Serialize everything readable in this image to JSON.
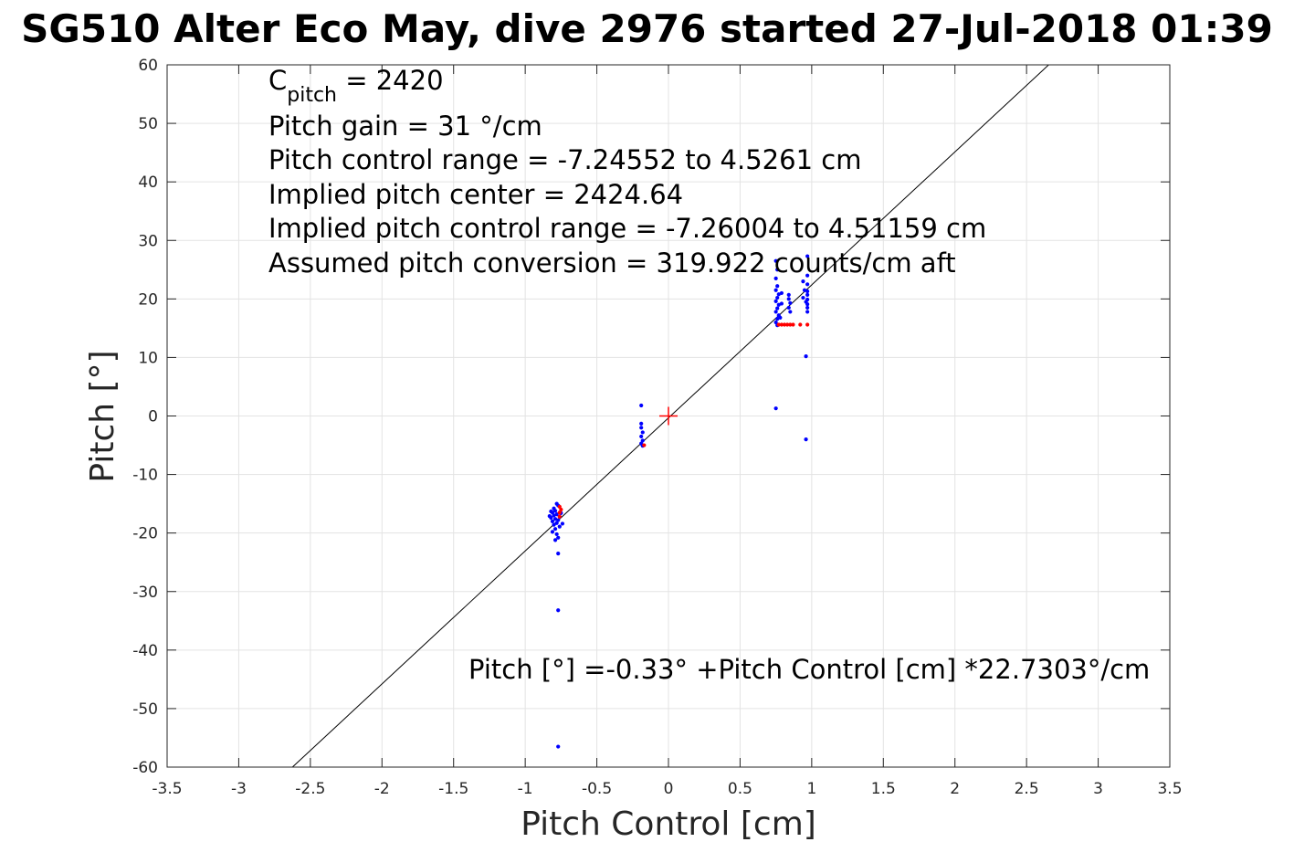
{
  "chart_data": {
    "type": "scatter",
    "title": "SG510 Alter Eco May, dive 2976 started 27-Jul-2018 01:39",
    "xlabel": "Pitch Control [cm]",
    "ylabel": "Pitch [°]",
    "xlim": [
      -3.5,
      3.5
    ],
    "ylim": [
      -60,
      60
    ],
    "xticks": [
      -3.5,
      -3,
      -2.5,
      -2,
      -1.5,
      -1,
      -0.5,
      0,
      0.5,
      1,
      1.5,
      2,
      2.5,
      3,
      3.5
    ],
    "xtick_labels": [
      "-3.5",
      "-3",
      "-2.5",
      "-2",
      "-1.5",
      "-1",
      "-0.5",
      "0",
      "0.5",
      "1",
      "1.5",
      "2",
      "2.5",
      "3",
      "3.5"
    ],
    "yticks": [
      -60,
      -50,
      -40,
      -30,
      -20,
      -10,
      0,
      10,
      20,
      30,
      40,
      50,
      60
    ],
    "ytick_labels": [
      "-60",
      "-50",
      "-40",
      "-30",
      "-20",
      "-10",
      "0",
      "10",
      "20",
      "30",
      "40",
      "50",
      "60"
    ],
    "grid": true,
    "annotations": {
      "c_pitch_base": "C",
      "c_pitch_sub": "pitch",
      "c_pitch_value": " = 2420",
      "line2": "Pitch gain = 31 °/cm",
      "line3": "Pitch control range = -7.24552 to 4.5261 cm",
      "line4": "Implied pitch center = 2424.64",
      "line5": "Implied pitch control range = -7.26004 to 4.51159 cm",
      "line6": "Assumed pitch conversion = 319.922 counts/cm aft",
      "fit_equation": "Pitch [°] =-0.33° +Pitch Control [cm] *22.7303°/cm"
    },
    "fit_line": {
      "intercept": -0.33,
      "slope": 22.7303,
      "color": "#000000"
    },
    "center_marker": {
      "x": 0,
      "y": 0,
      "color": "#ff0000"
    },
    "series": [
      {
        "color": "#0000ff",
        "points": [
          [
            -0.78,
            -15.0
          ],
          [
            -0.77,
            -15.3
          ],
          [
            -0.8,
            -15.8
          ],
          [
            -0.79,
            -16.2
          ],
          [
            -0.81,
            -16.5
          ],
          [
            -0.78,
            -16.8
          ],
          [
            -0.8,
            -17.0
          ],
          [
            -0.76,
            -17.2
          ],
          [
            -0.82,
            -17.4
          ],
          [
            -0.79,
            -17.6
          ],
          [
            -0.77,
            -17.8
          ],
          [
            -0.81,
            -18.0
          ],
          [
            -0.78,
            -18.3
          ],
          [
            -0.8,
            -18.6
          ],
          [
            -0.76,
            -18.9
          ],
          [
            -0.79,
            -19.3
          ],
          [
            -0.81,
            -19.8
          ],
          [
            -0.78,
            -20.2
          ],
          [
            -0.77,
            -20.8
          ],
          [
            -0.79,
            -21.2
          ],
          [
            -0.82,
            -16.3
          ],
          [
            -0.83,
            -17.1
          ],
          [
            -0.75,
            -16.6
          ],
          [
            -0.74,
            -18.4
          ],
          [
            -0.77,
            -23.5
          ],
          [
            -0.77,
            -33.2
          ],
          [
            -0.77,
            -56.5
          ],
          [
            -0.19,
            1.8
          ],
          [
            -0.19,
            -1.3
          ],
          [
            -0.19,
            -2.0
          ],
          [
            -0.18,
            -2.8
          ],
          [
            -0.19,
            -3.5
          ],
          [
            -0.18,
            -4.2
          ],
          [
            -0.19,
            -4.7
          ],
          [
            -0.18,
            -5.1
          ],
          [
            0.75,
            26.5
          ],
          [
            0.76,
            25.0
          ],
          [
            0.75,
            23.5
          ],
          [
            0.76,
            22.2
          ],
          [
            0.75,
            21.5
          ],
          [
            0.77,
            20.8
          ],
          [
            0.76,
            20.2
          ],
          [
            0.75,
            19.6
          ],
          [
            0.77,
            19.0
          ],
          [
            0.76,
            18.4
          ],
          [
            0.75,
            17.8
          ],
          [
            0.77,
            17.2
          ],
          [
            0.76,
            16.6
          ],
          [
            0.75,
            16.0
          ],
          [
            0.76,
            15.5
          ],
          [
            0.78,
            16.8
          ],
          [
            0.79,
            19.2
          ],
          [
            0.79,
            21.0
          ],
          [
            0.75,
            1.3
          ],
          [
            0.84,
            20.7
          ],
          [
            0.84,
            20.0
          ],
          [
            0.85,
            19.3
          ],
          [
            0.84,
            18.5
          ],
          [
            0.85,
            17.8
          ],
          [
            0.94,
            23.0
          ],
          [
            0.95,
            21.5
          ],
          [
            0.94,
            20.2
          ],
          [
            0.96,
            19.5
          ],
          [
            0.97,
            27.3
          ],
          [
            0.97,
            24.0
          ],
          [
            0.97,
            22.5
          ],
          [
            0.97,
            21.3
          ],
          [
            0.97,
            20.7
          ],
          [
            0.97,
            19.9
          ],
          [
            0.97,
            19.1
          ],
          [
            0.97,
            18.5
          ],
          [
            0.97,
            17.8
          ],
          [
            0.96,
            10.2
          ],
          [
            0.96,
            -4.0
          ]
        ]
      },
      {
        "color": "#ff0000",
        "points": [
          [
            -0.76,
            -15.5
          ],
          [
            -0.75,
            -16.0
          ],
          [
            -0.76,
            -16.5
          ],
          [
            -0.76,
            -17.2
          ],
          [
            -0.17,
            -5.0
          ],
          [
            0.77,
            15.6
          ],
          [
            0.79,
            15.6
          ],
          [
            0.81,
            15.6
          ],
          [
            0.83,
            15.6
          ],
          [
            0.85,
            15.6
          ],
          [
            0.87,
            15.6
          ],
          [
            0.92,
            15.6
          ],
          [
            0.97,
            15.6
          ]
        ]
      }
    ]
  }
}
